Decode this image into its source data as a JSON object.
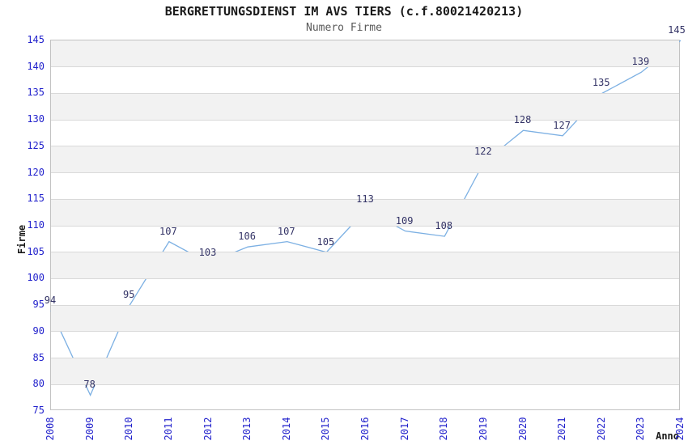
{
  "title": "BERGRETTUNGSDIENST IM AVS TIERS (c.f.80021420213)",
  "subtitle": "Numero Firme",
  "chart_data": {
    "type": "line",
    "title": "BERGRETTUNGSDIENST IM AVS TIERS (c.f.80021420213)",
    "subtitle": "Numero Firme",
    "xlabel": "Anno",
    "ylabel": "Firme",
    "x": [
      2008,
      2009,
      2010,
      2011,
      2012,
      2013,
      2014,
      2015,
      2016,
      2017,
      2018,
      2019,
      2020,
      2021,
      2022,
      2023,
      2024
    ],
    "series": [
      {
        "name": "Numero Firme",
        "values": [
          94,
          78,
          95,
          107,
          103,
          106,
          107,
          105,
          113,
          109,
          108,
          122,
          128,
          127,
          135,
          139,
          145
        ]
      }
    ],
    "data_labels_visible": true,
    "ylim": [
      75,
      145
    ],
    "yticks": [
      75,
      80,
      85,
      90,
      95,
      100,
      105,
      110,
      115,
      120,
      125,
      130,
      135,
      140,
      145
    ],
    "legend": "none",
    "grid": "horizontal-bands-alternating",
    "colors": {
      "line": "#7cb0e3",
      "tick_labels": "#2222cc",
      "data_labels": "#333366",
      "band_fill": "#f2f2f2",
      "gridline": "#d9d9d9",
      "plot_border": "#c2c2c2",
      "title": "#1a1a1a",
      "subtitle": "#595959",
      "axis_titles": "#1a1a1a"
    }
  }
}
